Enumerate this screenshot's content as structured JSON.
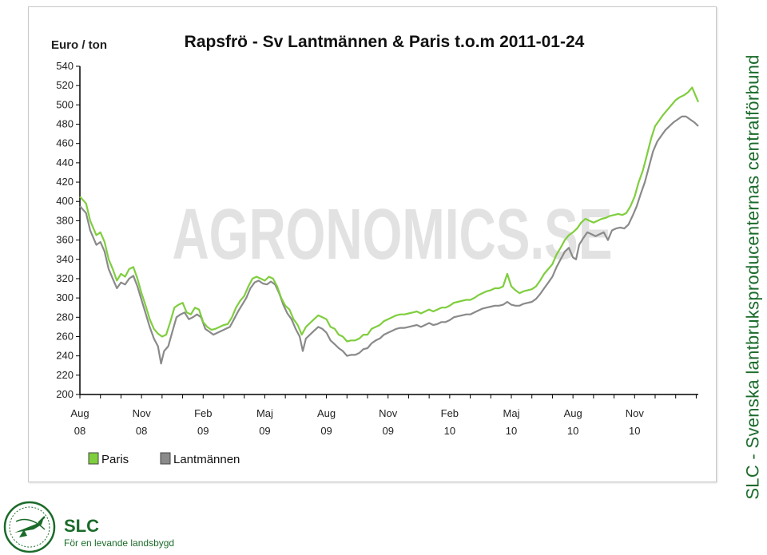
{
  "chart_data": {
    "type": "line",
    "title": "Rapsfrö - Sv Lantmännen & Paris t.o.m 2011-01-24",
    "ylabel": "Euro / ton",
    "watermark": "AGRONOMICS.SE",
    "ylim": [
      200,
      540
    ],
    "yticks": [
      200,
      220,
      240,
      260,
      280,
      300,
      320,
      340,
      360,
      380,
      400,
      420,
      440,
      460,
      480,
      500,
      520,
      540
    ],
    "xlim": [
      0,
      30.1
    ],
    "xticks": [
      {
        "pos": 0,
        "month": "Aug",
        "year": "08"
      },
      {
        "pos": 3,
        "month": "Nov",
        "year": "08"
      },
      {
        "pos": 6,
        "month": "Feb",
        "year": "09"
      },
      {
        "pos": 9,
        "month": "Maj",
        "year": "09"
      },
      {
        "pos": 12,
        "month": "Aug",
        "year": "09"
      },
      {
        "pos": 15,
        "month": "Nov",
        "year": "09"
      },
      {
        "pos": 18,
        "month": "Feb",
        "year": "10"
      },
      {
        "pos": 21,
        "month": "Maj",
        "year": "10"
      },
      {
        "pos": 24,
        "month": "Aug",
        "year": "10"
      },
      {
        "pos": 27,
        "month": "Nov",
        "year": "10"
      }
    ],
    "grid": false,
    "legend_position": "bottom-left",
    "series": [
      {
        "name": "Paris",
        "color": "#7fce3e",
        "points": [
          [
            0,
            405
          ],
          [
            0.3,
            398
          ],
          [
            0.5,
            380
          ],
          [
            0.8,
            365
          ],
          [
            1.0,
            368
          ],
          [
            1.2,
            358
          ],
          [
            1.4,
            340
          ],
          [
            1.6,
            330
          ],
          [
            1.8,
            318
          ],
          [
            2.0,
            325
          ],
          [
            2.2,
            322
          ],
          [
            2.4,
            330
          ],
          [
            2.6,
            332
          ],
          [
            2.8,
            320
          ],
          [
            3.0,
            305
          ],
          [
            3.2,
            292
          ],
          [
            3.4,
            278
          ],
          [
            3.6,
            268
          ],
          [
            3.8,
            263
          ],
          [
            4.0,
            260
          ],
          [
            4.2,
            262
          ],
          [
            4.4,
            275
          ],
          [
            4.6,
            290
          ],
          [
            4.8,
            293
          ],
          [
            5.0,
            295
          ],
          [
            5.2,
            285
          ],
          [
            5.4,
            283
          ],
          [
            5.6,
            290
          ],
          [
            5.8,
            288
          ],
          [
            6.0,
            275
          ],
          [
            6.2,
            270
          ],
          [
            6.4,
            267
          ],
          [
            6.6,
            268
          ],
          [
            6.8,
            270
          ],
          [
            7.0,
            272
          ],
          [
            7.2,
            273
          ],
          [
            7.4,
            280
          ],
          [
            7.6,
            290
          ],
          [
            7.8,
            297
          ],
          [
            8.0,
            302
          ],
          [
            8.2,
            312
          ],
          [
            8.4,
            320
          ],
          [
            8.6,
            322
          ],
          [
            8.8,
            320
          ],
          [
            9.0,
            318
          ],
          [
            9.2,
            322
          ],
          [
            9.4,
            320
          ],
          [
            9.6,
            312
          ],
          [
            9.8,
            300
          ],
          [
            10.0,
            292
          ],
          [
            10.2,
            288
          ],
          [
            10.4,
            278
          ],
          [
            10.6,
            272
          ],
          [
            10.8,
            262
          ],
          [
            11.0,
            270
          ],
          [
            11.2,
            274
          ],
          [
            11.4,
            278
          ],
          [
            11.6,
            282
          ],
          [
            11.8,
            280
          ],
          [
            12.0,
            278
          ],
          [
            12.2,
            270
          ],
          [
            12.4,
            268
          ],
          [
            12.6,
            262
          ],
          [
            12.8,
            260
          ],
          [
            13.0,
            255
          ],
          [
            13.2,
            256
          ],
          [
            13.4,
            256
          ],
          [
            13.6,
            258
          ],
          [
            13.8,
            262
          ],
          [
            14.0,
            262
          ],
          [
            14.2,
            268
          ],
          [
            14.4,
            270
          ],
          [
            14.6,
            272
          ],
          [
            14.8,
            276
          ],
          [
            15.0,
            278
          ],
          [
            15.2,
            280
          ],
          [
            15.4,
            282
          ],
          [
            15.6,
            283
          ],
          [
            15.8,
            283
          ],
          [
            16.0,
            284
          ],
          [
            16.2,
            285
          ],
          [
            16.4,
            286
          ],
          [
            16.6,
            284
          ],
          [
            16.8,
            286
          ],
          [
            17.0,
            288
          ],
          [
            17.2,
            286
          ],
          [
            17.4,
            288
          ],
          [
            17.6,
            290
          ],
          [
            17.8,
            290
          ],
          [
            18.0,
            292
          ],
          [
            18.2,
            295
          ],
          [
            18.4,
            296
          ],
          [
            18.6,
            297
          ],
          [
            18.8,
            298
          ],
          [
            19.0,
            298
          ],
          [
            19.2,
            300
          ],
          [
            19.4,
            303
          ],
          [
            19.6,
            305
          ],
          [
            19.8,
            307
          ],
          [
            20.0,
            308
          ],
          [
            20.2,
            310
          ],
          [
            20.4,
            310
          ],
          [
            20.6,
            312
          ],
          [
            20.8,
            325
          ],
          [
            21.0,
            312
          ],
          [
            21.2,
            308
          ],
          [
            21.4,
            305
          ],
          [
            21.6,
            307
          ],
          [
            21.8,
            308
          ],
          [
            22.0,
            309
          ],
          [
            22.2,
            312
          ],
          [
            22.4,
            318
          ],
          [
            22.6,
            325
          ],
          [
            22.8,
            330
          ],
          [
            23.0,
            335
          ],
          [
            23.2,
            345
          ],
          [
            23.4,
            352
          ],
          [
            23.6,
            360
          ],
          [
            23.8,
            365
          ],
          [
            24.0,
            368
          ],
          [
            24.2,
            372
          ],
          [
            24.4,
            378
          ],
          [
            24.6,
            382
          ],
          [
            24.8,
            380
          ],
          [
            25.0,
            378
          ],
          [
            25.2,
            380
          ],
          [
            25.4,
            382
          ],
          [
            25.6,
            383
          ],
          [
            25.8,
            385
          ],
          [
            26.0,
            386
          ],
          [
            26.2,
            387
          ],
          [
            26.4,
            386
          ],
          [
            26.6,
            388
          ],
          [
            26.8,
            395
          ],
          [
            27.0,
            405
          ],
          [
            27.2,
            420
          ],
          [
            27.4,
            432
          ],
          [
            27.6,
            448
          ],
          [
            27.8,
            465
          ],
          [
            28.0,
            478
          ],
          [
            28.2,
            484
          ],
          [
            28.4,
            490
          ],
          [
            28.6,
            495
          ],
          [
            28.8,
            500
          ],
          [
            29.0,
            505
          ],
          [
            29.2,
            508
          ],
          [
            29.4,
            510
          ],
          [
            29.6,
            513
          ],
          [
            29.8,
            518
          ],
          [
            30.0,
            508
          ],
          [
            30.1,
            503
          ]
        ]
      },
      {
        "name": "Lantmännen",
        "color": "#8a8a8a",
        "points": [
          [
            0,
            395
          ],
          [
            0.3,
            388
          ],
          [
            0.5,
            370
          ],
          [
            0.8,
            355
          ],
          [
            1.0,
            358
          ],
          [
            1.2,
            348
          ],
          [
            1.4,
            330
          ],
          [
            1.6,
            320
          ],
          [
            1.8,
            310
          ],
          [
            2.0,
            316
          ],
          [
            2.2,
            314
          ],
          [
            2.4,
            320
          ],
          [
            2.6,
            323
          ],
          [
            2.8,
            312
          ],
          [
            3.0,
            298
          ],
          [
            3.2,
            284
          ],
          [
            3.4,
            270
          ],
          [
            3.6,
            258
          ],
          [
            3.8,
            250
          ],
          [
            3.95,
            232
          ],
          [
            4.1,
            245
          ],
          [
            4.3,
            250
          ],
          [
            4.5,
            265
          ],
          [
            4.7,
            280
          ],
          [
            4.9,
            283
          ],
          [
            5.1,
            285
          ],
          [
            5.3,
            278
          ],
          [
            5.5,
            280
          ],
          [
            5.7,
            283
          ],
          [
            5.9,
            280
          ],
          [
            6.1,
            268
          ],
          [
            6.3,
            265
          ],
          [
            6.5,
            262
          ],
          [
            6.7,
            264
          ],
          [
            6.9,
            266
          ],
          [
            7.1,
            268
          ],
          [
            7.3,
            270
          ],
          [
            7.5,
            278
          ],
          [
            7.7,
            286
          ],
          [
            7.9,
            293
          ],
          [
            8.1,
            300
          ],
          [
            8.3,
            310
          ],
          [
            8.5,
            316
          ],
          [
            8.7,
            318
          ],
          [
            8.9,
            315
          ],
          [
            9.1,
            314
          ],
          [
            9.3,
            317
          ],
          [
            9.5,
            314
          ],
          [
            9.7,
            305
          ],
          [
            9.9,
            293
          ],
          [
            10.1,
            284
          ],
          [
            10.3,
            278
          ],
          [
            10.5,
            268
          ],
          [
            10.7,
            260
          ],
          [
            10.85,
            245
          ],
          [
            11.0,
            258
          ],
          [
            11.2,
            262
          ],
          [
            11.4,
            266
          ],
          [
            11.6,
            270
          ],
          [
            11.8,
            268
          ],
          [
            12.0,
            264
          ],
          [
            12.2,
            256
          ],
          [
            12.4,
            252
          ],
          [
            12.6,
            248
          ],
          [
            12.8,
            245
          ],
          [
            13.0,
            240
          ],
          [
            13.2,
            241
          ],
          [
            13.4,
            241
          ],
          [
            13.6,
            243
          ],
          [
            13.8,
            247
          ],
          [
            14.0,
            248
          ],
          [
            14.2,
            253
          ],
          [
            14.4,
            256
          ],
          [
            14.6,
            258
          ],
          [
            14.8,
            262
          ],
          [
            15.0,
            264
          ],
          [
            15.2,
            266
          ],
          [
            15.4,
            268
          ],
          [
            15.6,
            269
          ],
          [
            15.8,
            269
          ],
          [
            16.0,
            270
          ],
          [
            16.2,
            271
          ],
          [
            16.4,
            272
          ],
          [
            16.6,
            270
          ],
          [
            16.8,
            272
          ],
          [
            17.0,
            274
          ],
          [
            17.2,
            272
          ],
          [
            17.4,
            273
          ],
          [
            17.6,
            275
          ],
          [
            17.8,
            275
          ],
          [
            18.0,
            277
          ],
          [
            18.2,
            280
          ],
          [
            18.4,
            281
          ],
          [
            18.6,
            282
          ],
          [
            18.8,
            283
          ],
          [
            19.0,
            283
          ],
          [
            19.2,
            285
          ],
          [
            19.4,
            287
          ],
          [
            19.6,
            289
          ],
          [
            19.8,
            290
          ],
          [
            20.0,
            291
          ],
          [
            20.2,
            292
          ],
          [
            20.4,
            292
          ],
          [
            20.6,
            293
          ],
          [
            20.8,
            296
          ],
          [
            21.0,
            293
          ],
          [
            21.2,
            292
          ],
          [
            21.4,
            292
          ],
          [
            21.6,
            294
          ],
          [
            21.8,
            295
          ],
          [
            22.0,
            296
          ],
          [
            22.2,
            299
          ],
          [
            22.4,
            304
          ],
          [
            22.6,
            310
          ],
          [
            22.8,
            316
          ],
          [
            23.0,
            322
          ],
          [
            23.2,
            332
          ],
          [
            23.4,
            340
          ],
          [
            23.6,
            348
          ],
          [
            23.8,
            352
          ],
          [
            24.0,
            342
          ],
          [
            24.15,
            340
          ],
          [
            24.3,
            355
          ],
          [
            24.5,
            362
          ],
          [
            24.7,
            368
          ],
          [
            24.9,
            366
          ],
          [
            25.1,
            364
          ],
          [
            25.3,
            366
          ],
          [
            25.5,
            368
          ],
          [
            25.7,
            360
          ],
          [
            25.9,
            370
          ],
          [
            26.1,
            372
          ],
          [
            26.3,
            373
          ],
          [
            26.5,
            372
          ],
          [
            26.7,
            376
          ],
          [
            26.9,
            385
          ],
          [
            27.1,
            395
          ],
          [
            27.3,
            408
          ],
          [
            27.5,
            420
          ],
          [
            27.7,
            436
          ],
          [
            27.9,
            452
          ],
          [
            28.1,
            462
          ],
          [
            28.3,
            468
          ],
          [
            28.5,
            474
          ],
          [
            28.7,
            478
          ],
          [
            28.9,
            482
          ],
          [
            29.1,
            485
          ],
          [
            29.3,
            488
          ],
          [
            29.5,
            488
          ],
          [
            29.7,
            485
          ],
          [
            29.9,
            482
          ],
          [
            30.1,
            478
          ]
        ]
      }
    ]
  },
  "sidebar": {
    "vertical_text": "SLC  -  Svenska lantbruksproducenternas centralförbund"
  },
  "brand": {
    "name": "SLC",
    "tagline": "För en levande landsbygd",
    "logo_icon": "plough-emblem-icon",
    "color": "#1b6b2a"
  }
}
